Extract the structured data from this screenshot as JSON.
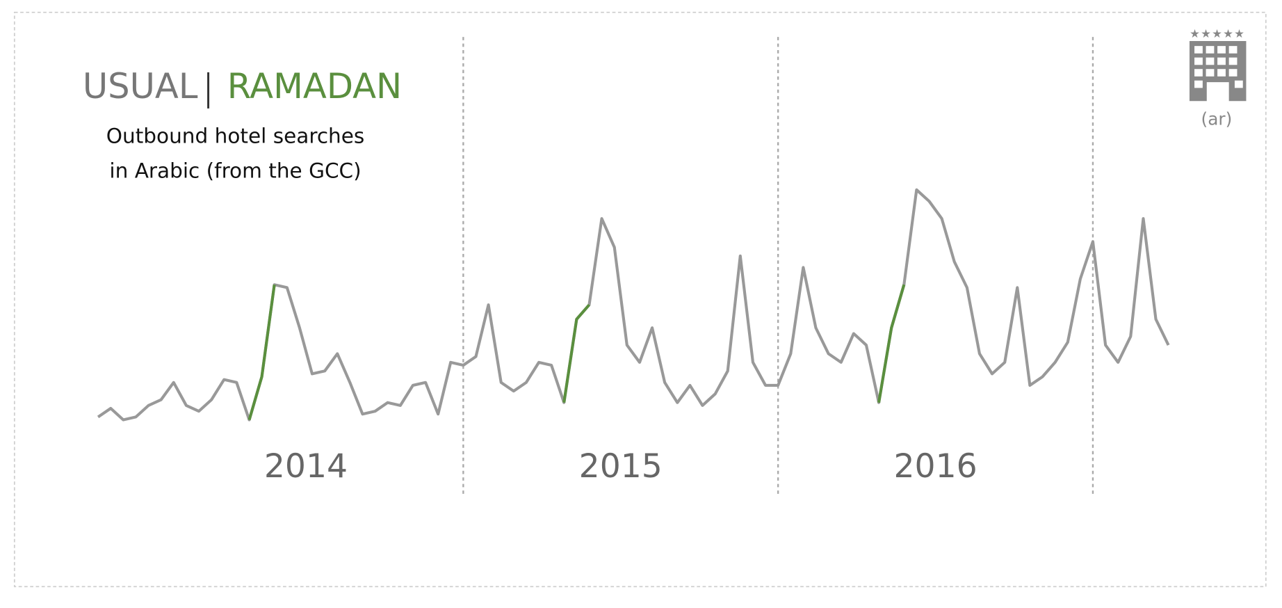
{
  "chart_data": {
    "type": "line",
    "legend": [
      "USUAL",
      "RAMADAN"
    ],
    "subtitle": [
      "Outbound hotel searches",
      "in Arabic (from the GCC)"
    ],
    "icon_label": "(ar)",
    "x": [
      2013.84,
      2013.88,
      2013.92,
      2013.96,
      2014.0,
      2014.04,
      2014.08,
      2014.12,
      2014.16,
      2014.2,
      2014.24,
      2014.28,
      2014.32,
      2014.36,
      2014.4,
      2014.44,
      2014.48,
      2014.52,
      2014.56,
      2014.6,
      2014.64,
      2014.68,
      2014.72,
      2014.76,
      2014.8,
      2014.84,
      2014.88,
      2014.92,
      2014.96,
      2015.0,
      2015.04,
      2015.08,
      2015.12,
      2015.16,
      2015.2,
      2015.24,
      2015.28,
      2015.32,
      2015.36,
      2015.4,
      2015.44,
      2015.48,
      2015.52,
      2015.56,
      2015.6,
      2015.64,
      2015.68,
      2015.72,
      2015.76,
      2015.8,
      2015.84,
      2015.88,
      2015.92,
      2015.96,
      2016.0,
      2016.04,
      2016.08,
      2016.12,
      2016.16,
      2016.2,
      2016.24,
      2016.28,
      2016.32,
      2016.36,
      2016.4,
      2016.44,
      2016.48,
      2016.52,
      2016.56,
      2016.6,
      2016.64,
      2016.68,
      2016.72,
      2016.76,
      2016.8,
      2016.84,
      2016.88,
      2016.92,
      2016.96,
      2017.0,
      2017.04,
      2017.08,
      2017.12,
      2017.16,
      2017.2,
      2017.24
    ],
    "series": [
      {
        "name": "USUAL",
        "color": "#999999",
        "values": [
          15,
          18,
          14,
          15,
          19,
          21,
          27,
          19,
          17,
          21,
          28,
          27,
          14,
          29,
          61,
          60,
          46,
          30,
          31,
          37,
          27,
          16,
          17,
          20,
          19,
          26,
          27,
          16,
          34,
          33,
          36,
          54,
          27,
          24,
          27,
          34,
          33,
          20,
          49,
          54,
          84,
          74,
          40,
          34,
          46,
          27,
          20,
          26,
          19,
          23,
          31,
          71,
          34,
          26,
          26,
          37,
          67,
          46,
          37,
          34,
          44,
          40,
          20,
          46,
          61,
          94,
          90,
          84,
          69,
          60,
          37,
          30,
          34,
          60,
          26,
          29,
          34,
          41,
          63,
          76,
          40,
          34,
          43,
          84,
          49,
          40
        ]
      },
      {
        "name": "RAMADAN",
        "color": "#5a8f3e",
        "values": [
          null,
          null,
          null,
          null,
          null,
          null,
          null,
          null,
          null,
          null,
          null,
          null,
          14,
          29,
          61,
          null,
          null,
          null,
          null,
          null,
          null,
          null,
          null,
          null,
          null,
          null,
          null,
          null,
          null,
          null,
          null,
          null,
          null,
          null,
          null,
          null,
          null,
          20,
          49,
          54,
          null,
          null,
          null,
          null,
          null,
          null,
          null,
          null,
          null,
          null,
          null,
          null,
          null,
          null,
          null,
          null,
          null,
          null,
          null,
          null,
          null,
          null,
          20,
          46,
          61,
          null,
          null,
          null,
          null,
          null,
          null,
          null,
          null,
          null,
          null,
          null,
          null,
          null,
          null,
          null,
          null,
          null,
          null,
          null,
          null,
          null
        ]
      }
    ],
    "xlim": [
      2013.83,
      2017.26
    ],
    "ylim": [
      0,
      100
    ],
    "xticks": [
      {
        "value": 2014.5,
        "label": "2014"
      },
      {
        "value": 2015.5,
        "label": "2015"
      },
      {
        "value": 2016.5,
        "label": "2016"
      }
    ],
    "year_boundaries": [
      2015,
      2016,
      2017
    ]
  }
}
